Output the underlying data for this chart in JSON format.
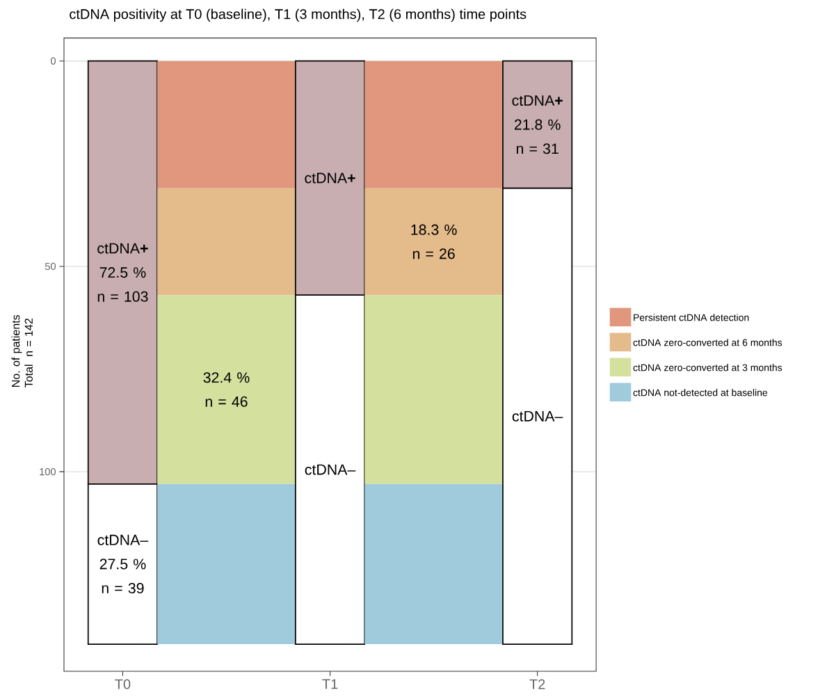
{
  "chart_data": {
    "type": "bar",
    "stacked": true,
    "title": "ctDNA positivity at T0 (baseline), T1 (3 months), T2 (6 months) time points",
    "ylabel": "No. of patients Total  n = 142",
    "categories": [
      "T0",
      null,
      "T1",
      null,
      "T2"
    ],
    "ylim": [
      148.6,
      -5.6
    ],
    "yticks": [
      0,
      50,
      100
    ],
    "grid": "y",
    "legend": "right",
    "series": [
      {
        "color": "#c8aeb1",
        "values": [
          103,
          null,
          57,
          null,
          31
        ],
        "value_labels": [
          "ctDNA**+** 72.5 % n = 103",
          null,
          "ctDNA**+**",
          null,
          "ctDNA**+** 21.8 % n = 31"
        ]
      },
      {
        "name": "Persistent ctDNA detection",
        "color": "#e1977d",
        "values": [
          null,
          31,
          null,
          31,
          null
        ]
      },
      {
        "name": "ctDNA zero-converted at 6 months",
        "color": "#e4bb8b",
        "values": [
          null,
          26,
          null,
          26,
          null
        ],
        "value_labels": [
          null,
          null,
          null,
          "18.3 % n = 26",
          null
        ]
      },
      {
        "name": "ctDNA zero-converted at 3 months",
        "color": "#d4e19e",
        "values": [
          null,
          46,
          null,
          46,
          null
        ],
        "value_labels": [
          null,
          "32.4 % n = 46",
          null,
          null,
          null
        ]
      },
      {
        "name": "ctDNA not-detected at baseline",
        "color": "#9fcbdd",
        "values": [
          null,
          39,
          null,
          39,
          null
        ]
      },
      {
        "color": "#ffffff",
        "values": [
          39,
          null,
          85,
          null,
          111
        ],
        "value_labels": [
          "ctDNA– 27.5 % n = 39",
          null,
          "ctDNA–",
          null,
          "ctDNA–"
        ]
      }
    ]
  }
}
